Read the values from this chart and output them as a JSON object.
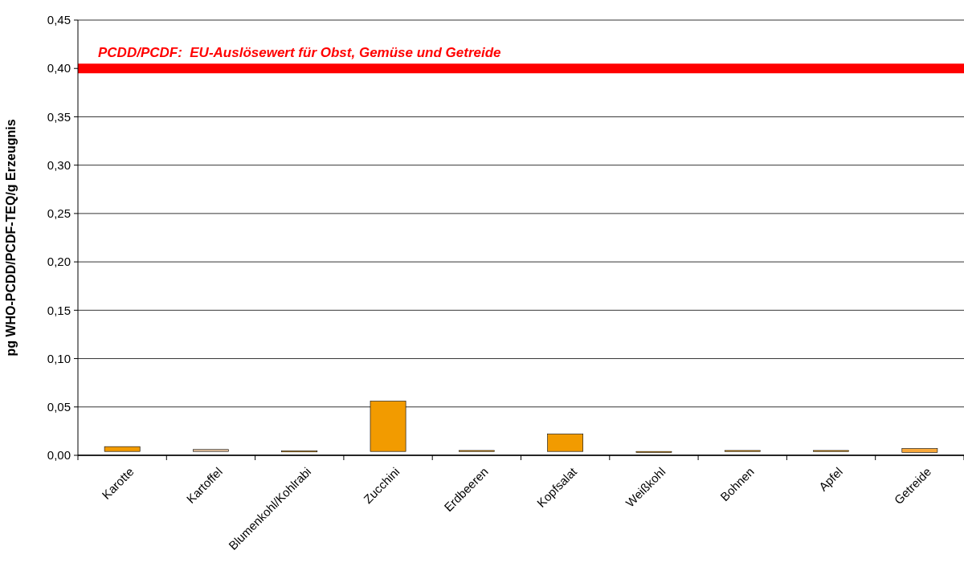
{
  "chart_data": {
    "type": "bar",
    "ylabel": "pg WHO-PCDD/PCDF-TEQ/g Erzeugnis",
    "categories": [
      "Karotte",
      "Kartoffel",
      "Blumenkohl/Kohlrabi",
      "Zucchini",
      "Erdbeeren",
      "Kopfsalat",
      "Weißkohl",
      "Bohnen",
      "Apfel",
      "Getreide"
    ],
    "base": [
      0.004,
      0.004,
      0.0035,
      0.004,
      0.004,
      0.004,
      0.003,
      0.004,
      0.004,
      0.003
    ],
    "values": [
      0.005,
      0.002,
      0.001,
      0.052,
      0.001,
      0.018,
      0.001,
      0.001,
      0.001,
      0.004
    ],
    "colors": [
      "#f29b00",
      "#e8c4a0",
      "#f29b00",
      "#f29b00",
      "#f29b00",
      "#f29b00",
      "#f29b00",
      "#f29b00",
      "#f29b00",
      "#f9a83a"
    ],
    "ylim": [
      0,
      0.45
    ],
    "yticks": [
      {
        "value": 0,
        "label": "0,00"
      },
      {
        "value": 0.05,
        "label": "0,05"
      },
      {
        "value": 0.1,
        "label": "0,10"
      },
      {
        "value": 0.15,
        "label": "0,15"
      },
      {
        "value": 0.2,
        "label": "0,20"
      },
      {
        "value": 0.25,
        "label": "0,25"
      },
      {
        "value": 0.3,
        "label": "0,30"
      },
      {
        "value": 0.35,
        "label": "0,35"
      },
      {
        "value": 0.4,
        "label": "0,40"
      },
      {
        "value": 0.45,
        "label": "0,45"
      }
    ],
    "grid": "y",
    "ref_lines": [
      {
        "axis": "y",
        "value": 0.4,
        "label": "PCDD/PCDF:  EU-Auslösewert für Obst, Gemüse und Getreide",
        "color": "#ff0000"
      }
    ]
  }
}
